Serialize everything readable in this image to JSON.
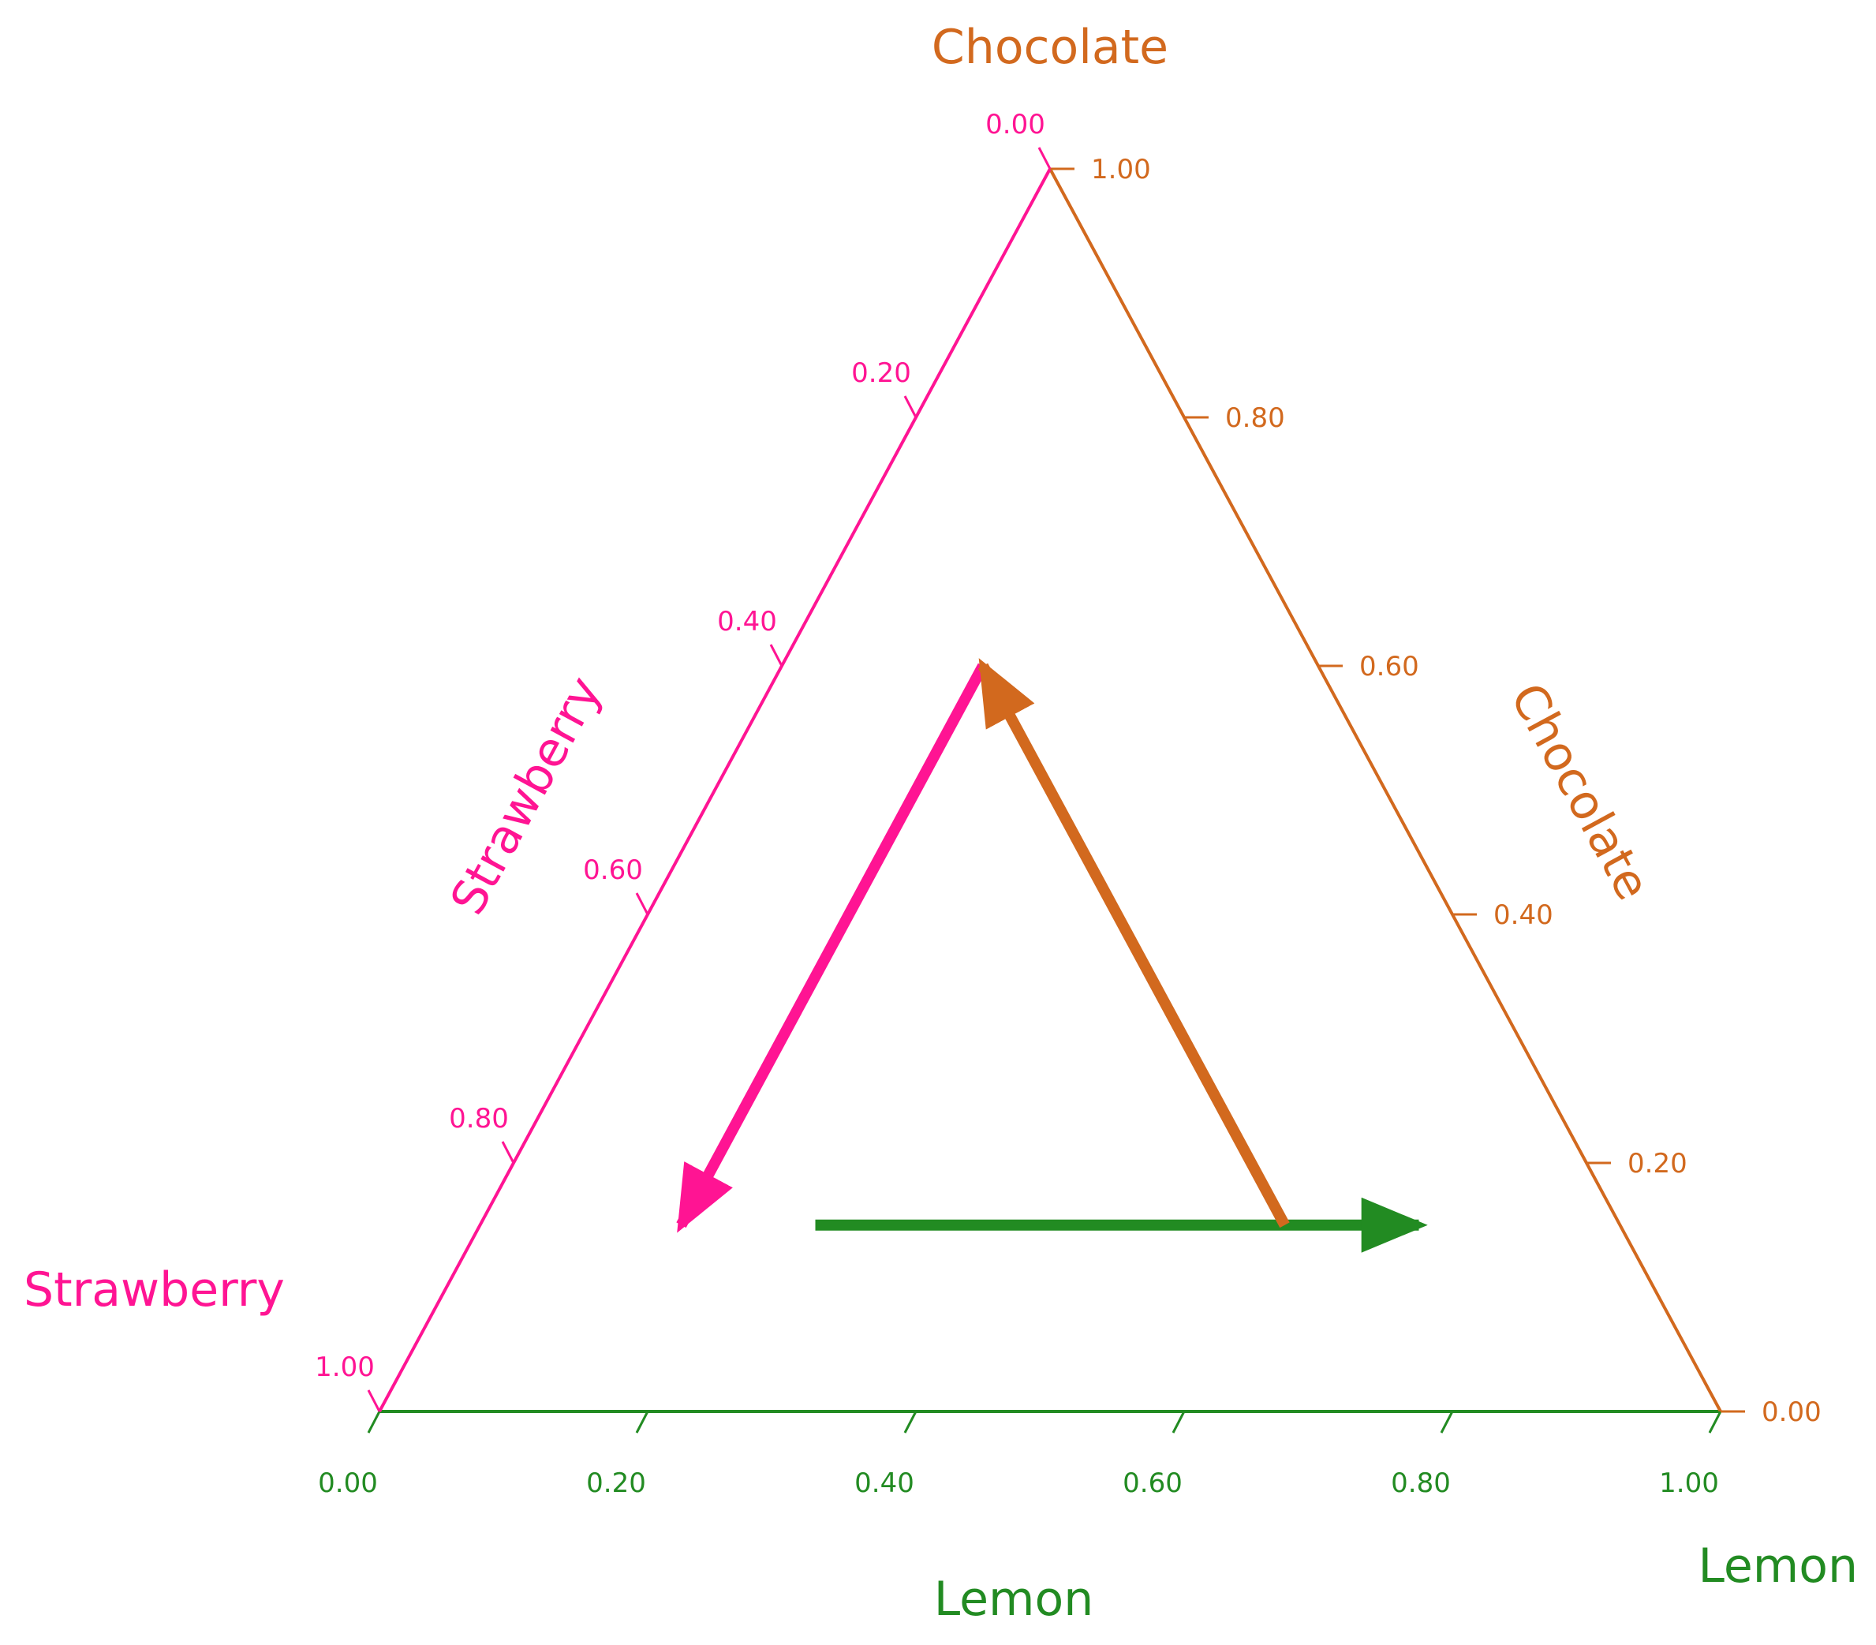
{
  "chart_data": {
    "type": "ternary",
    "vertex_labels": {
      "top": "Chocolate",
      "bottom_left": "Strawberry",
      "bottom_right": "Lemon"
    },
    "axes": [
      {
        "key": "lemon",
        "title": "Lemon",
        "side": "bottom",
        "color": "#228B22",
        "ticks": [
          0.0,
          0.2,
          0.4,
          0.6,
          0.8,
          1.0
        ],
        "tick_labels": [
          "0.00",
          "0.20",
          "0.40",
          "0.60",
          "0.80",
          "1.00"
        ]
      },
      {
        "key": "chocolate",
        "title": "Chocolate",
        "side": "right",
        "color": "#D2691E",
        "ticks": [
          0.0,
          0.2,
          0.4,
          0.6,
          0.8,
          1.0
        ],
        "tick_labels": [
          "0.00",
          "0.20",
          "0.40",
          "0.60",
          "0.80",
          "1.00"
        ]
      },
      {
        "key": "strawberry",
        "title": "Strawberry",
        "side": "left",
        "color": "#FF1493",
        "ticks": [
          0.0,
          0.2,
          0.4,
          0.6,
          0.8,
          1.0
        ],
        "tick_labels": [
          "0.00",
          "0.20",
          "0.40",
          "0.60",
          "0.80",
          "1.00"
        ]
      }
    ],
    "arrows": [
      {
        "axis": "strawberry",
        "color": "#FF1493",
        "from": {
          "lemon": 0.15,
          "chocolate": 0.6,
          "strawberry": 0.25
        },
        "to": {
          "lemon": 0.15,
          "chocolate": 0.15,
          "strawberry": 0.7
        }
      },
      {
        "axis": "lemon",
        "color": "#228B22",
        "from": {
          "lemon": 0.25,
          "chocolate": 0.15,
          "strawberry": 0.6
        },
        "to": {
          "lemon": 0.7,
          "chocolate": 0.15,
          "strawberry": 0.15
        }
      },
      {
        "axis": "chocolate",
        "color": "#D2691E",
        "from": {
          "lemon": 0.6,
          "chocolate": 0.15,
          "strawberry": 0.25
        },
        "to": {
          "lemon": 0.15,
          "chocolate": 0.6,
          "strawberry": 0.25
        }
      }
    ],
    "grid": false
  }
}
